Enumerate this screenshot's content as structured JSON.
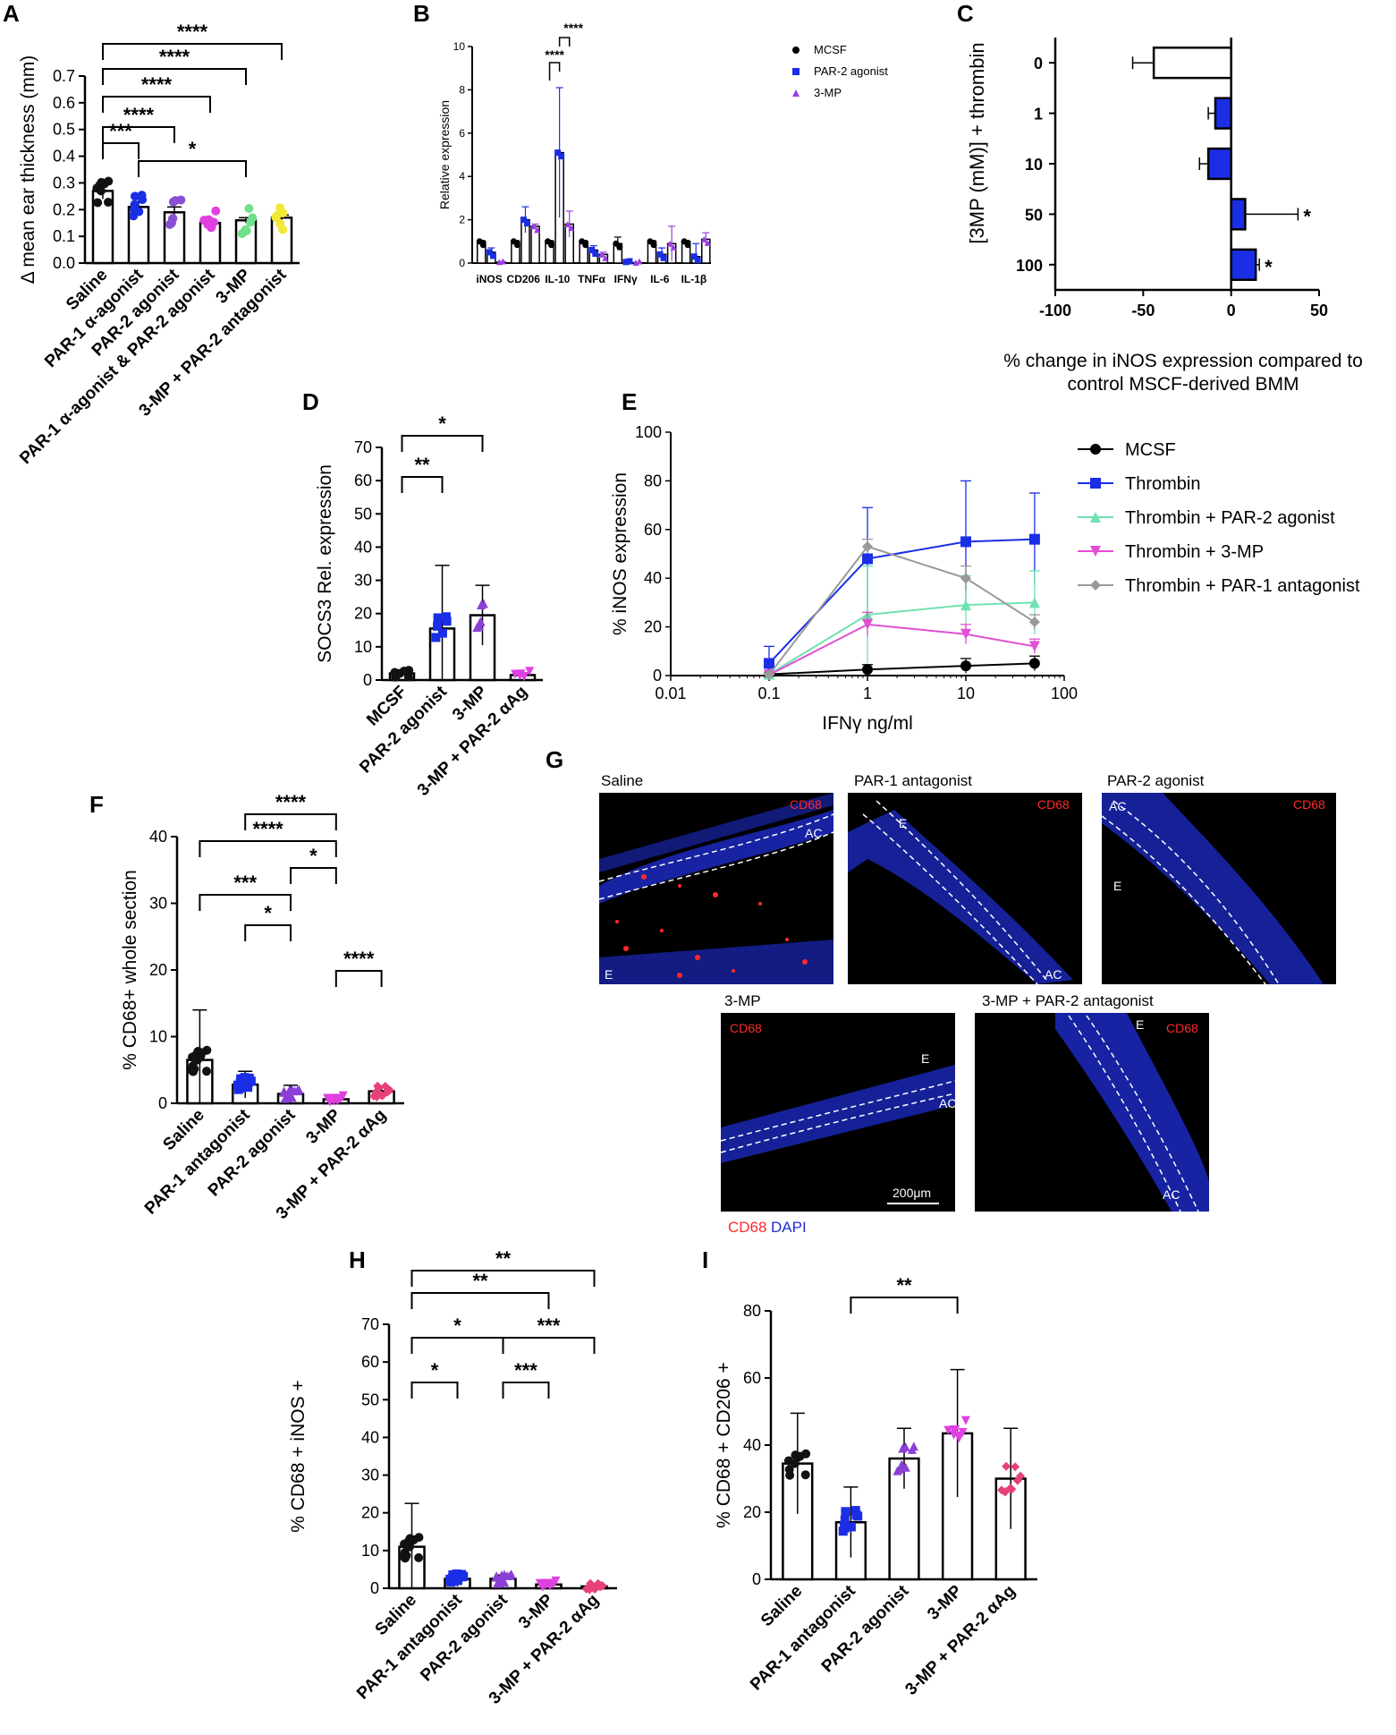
{
  "figure": {
    "A": {
      "letter": "A"
    },
    "B": {
      "letter": "B"
    },
    "C": {
      "letter": "C"
    },
    "D": {
      "letter": "D"
    },
    "E": {
      "letter": "E"
    },
    "F": {
      "letter": "F"
    },
    "G": {
      "letter": "G"
    },
    "H": {
      "letter": "H"
    },
    "I": {
      "letter": "I"
    }
  },
  "chart_data": [
    {
      "panel": "A",
      "type": "bar",
      "ylabel": "Δ mean ear thickness (mm)",
      "ylim": [
        0,
        0.7
      ],
      "yticks": [
        "0.0",
        "0.1",
        "0.2",
        "0.3",
        "0.4",
        "0.5",
        "0.6",
        "0.7"
      ],
      "categories": [
        "Saline",
        "PAR-1 α-agonist",
        "PAR-2 agonist",
        "PAR-1 α-agonist & PAR-2 agonist",
        "3-MP",
        "3-MP + PAR-2 antagonist"
      ],
      "values": [
        0.27,
        0.21,
        0.19,
        0.15,
        0.16,
        0.17
      ],
      "errors": [
        0.03,
        0.02,
        0.02,
        0.01,
        0.01,
        0.01
      ],
      "colors": [
        "#111111",
        "#1a2ee6",
        "#8b4fd6",
        "#e040e0",
        "#6fe08c",
        "#f2e836"
      ],
      "significance": [
        {
          "a": 0,
          "b": 1,
          "label": "***"
        },
        {
          "a": 0,
          "b": 2,
          "label": "****"
        },
        {
          "a": 0,
          "b": 3,
          "label": "****"
        },
        {
          "a": 0,
          "b": 4,
          "label": "****"
        },
        {
          "a": 0,
          "b": 5,
          "label": "****"
        },
        {
          "a": 1,
          "b": 4,
          "label": "*"
        }
      ]
    },
    {
      "panel": "B",
      "type": "bar",
      "ylabel": "Relative expression",
      "ylim": [
        0,
        10
      ],
      "yticks": [
        "0",
        "2",
        "4",
        "6",
        "8",
        "10"
      ],
      "categories": [
        "iNOS",
        "CD206",
        "IL-10",
        "TNFα",
        "IFNγ",
        "IL-6",
        "IL-1β"
      ],
      "series": [
        {
          "name": "MCSF",
          "color": "#000000",
          "marker": "circle",
          "values": [
            1,
            1,
            1,
            1,
            0.9,
            1,
            1
          ],
          "errors": [
            0.05,
            0.05,
            0.05,
            0.05,
            0.3,
            0.05,
            0.05
          ]
        },
        {
          "name": "PAR-2 agonist",
          "color": "#1a2ee6",
          "marker": "square",
          "values": [
            0.5,
            2,
            5.1,
            0.6,
            0.05,
            0.4,
            0.3
          ],
          "errors": [
            0.2,
            0.6,
            3.0,
            0.2,
            0.02,
            0.3,
            0.6
          ]
        },
        {
          "name": "3-MP",
          "color": "#9b3fe0",
          "marker": "triangle",
          "values": [
            0.05,
            1.7,
            1.8,
            0.4,
            0.02,
            0.9,
            1.1
          ],
          "errors": [
            0.02,
            0.1,
            0.6,
            0.1,
            0.01,
            0.8,
            0.3
          ]
        }
      ],
      "significance": [
        {
          "label": "****"
        },
        {
          "label": "****"
        }
      ]
    },
    {
      "panel": "C",
      "type": "bar",
      "orientation": "horizontal",
      "ylabel": "[3MP (mM)] + thrombin",
      "xlabel": "% change in iNOS expression compared to control MSCF-derived BMM",
      "xlim": [
        -100,
        50
      ],
      "xticks": [
        "-100",
        "-50",
        "0",
        "50"
      ],
      "categories": [
        "0",
        "1",
        "10",
        "50",
        "100"
      ],
      "values": [
        -44,
        -9,
        -13,
        8,
        14
      ],
      "errors": [
        12,
        4,
        5,
        30,
        2
      ],
      "colors": [
        "#ffffff",
        "#1a2ee6",
        "#1a2ee6",
        "#1a2ee6",
        "#1a2ee6"
      ],
      "significance": [
        "",
        "",
        "",
        "*",
        "*"
      ]
    },
    {
      "panel": "D",
      "type": "bar",
      "ylabel": "SOCS3 Rel. expression",
      "ylim": [
        0,
        70
      ],
      "yticks": [
        "0",
        "10",
        "20",
        "30",
        "40",
        "50",
        "60",
        "70"
      ],
      "categories": [
        "MCSF",
        "PAR-2 agonist",
        "3-MP",
        "3-MP + PAR-2 αAg"
      ],
      "values": [
        2,
        15.5,
        19.5,
        1.5
      ],
      "errors": [
        0.5,
        19,
        9,
        0.7
      ],
      "colors": [
        "#111111",
        "#1a2ee6",
        "#8b3fd6",
        "#e040e0"
      ],
      "significance": [
        {
          "a": 0,
          "b": 1,
          "label": "**"
        },
        {
          "a": 0,
          "b": 2,
          "label": "*"
        }
      ]
    },
    {
      "panel": "E",
      "type": "line",
      "xscale": "log",
      "xlabel": "IFNγ ng/ml",
      "ylabel": "% iNOS expression",
      "xlim": [
        0.01,
        100
      ],
      "ylim": [
        0,
        100
      ],
      "xticks": [
        "0.01",
        "0.1",
        "1",
        "10",
        "100"
      ],
      "yticks": [
        "0",
        "20",
        "40",
        "60",
        "80",
        "100"
      ],
      "x": [
        0.1,
        1,
        10,
        50
      ],
      "series": [
        {
          "name": "MCSF",
          "color": "#000000",
          "marker": "circle",
          "values": [
            0.5,
            2.5,
            4,
            5
          ],
          "errors": [
            0.5,
            2,
            3,
            3
          ]
        },
        {
          "name": "Thrombin",
          "color": "#1a2ee6",
          "marker": "square",
          "values": [
            5,
            48,
            55,
            56
          ],
          "errors": [
            7,
            21,
            25,
            19
          ]
        },
        {
          "name": "Thrombin + PAR-2 agonist",
          "color": "#6ee3b0",
          "marker": "triangle",
          "values": [
            0.5,
            25,
            29,
            30
          ],
          "errors": [
            0.5,
            20,
            12,
            13
          ]
        },
        {
          "name": "Thrombin + 3-MP",
          "color": "#e14fd2",
          "marker": "triangle-down",
          "values": [
            0.3,
            21,
            17,
            12
          ],
          "errors": [
            0.3,
            5,
            4,
            3
          ]
        },
        {
          "name": "Thrombin + PAR-1 antagonist",
          "color": "#999999",
          "marker": "diamond",
          "values": [
            0.3,
            53,
            40,
            22
          ],
          "errors": [
            0.3,
            3,
            5,
            3
          ]
        }
      ]
    },
    {
      "panel": "F",
      "type": "bar",
      "ylabel": "% CD68+ whole section",
      "ylim": [
        0,
        40
      ],
      "yticks": [
        "0",
        "10",
        "20",
        "30",
        "40"
      ],
      "categories": [
        "Saline",
        "PAR-1 antagonist",
        "PAR-2 agonist",
        "3-MP",
        "3-MP + PAR-2 αAg"
      ],
      "values": [
        6.5,
        2.8,
        1.4,
        0.6,
        1.8
      ],
      "errors": [
        7.5,
        2.0,
        1.3,
        0.2,
        0.8
      ],
      "colors": [
        "#111111",
        "#1a2ee6",
        "#8b3fd6",
        "#e040e0",
        "#e8407a"
      ],
      "significance": [
        {
          "a": 1,
          "b": 2,
          "label": "*"
        },
        {
          "a": 0,
          "b": 2,
          "label": "***"
        },
        {
          "a": 2,
          "b": 3,
          "label": "*"
        },
        {
          "a": 0,
          "b": 3,
          "label": "****"
        },
        {
          "a": 1,
          "b": 3,
          "label": "****"
        },
        {
          "a": 3,
          "b": 4,
          "label": "****"
        }
      ]
    },
    {
      "panel": "H",
      "type": "bar",
      "ylabel": "% CD68 + iNOS +",
      "ylim": [
        0,
        70
      ],
      "yticks": [
        "0",
        "10",
        "20",
        "30",
        "40",
        "50",
        "60",
        "70"
      ],
      "categories": [
        "Saline",
        "PAR-1 antagonist",
        "PAR-2 agonist",
        "3-MP",
        "3-MP + PAR-2 αAg"
      ],
      "values": [
        11,
        2.5,
        2.5,
        1,
        0.5
      ],
      "errors": [
        11.5,
        2,
        1,
        0.3,
        0.3
      ],
      "colors": [
        "#111111",
        "#1a2ee6",
        "#8b3fd6",
        "#e040e0",
        "#e8407a"
      ],
      "significance": [
        {
          "a": 0,
          "b": 1,
          "label": "*"
        },
        {
          "a": 0,
          "b": 2,
          "label": "*"
        },
        {
          "a": 2,
          "b": 3,
          "label": "***"
        },
        {
          "a": 2,
          "b": 4,
          "label": "***"
        },
        {
          "a": 0,
          "b": 3,
          "label": "**"
        },
        {
          "a": 0,
          "b": 4,
          "label": "**"
        }
      ]
    },
    {
      "panel": "I",
      "type": "bar",
      "ylabel": "% CD68 + CD206 +",
      "ylim": [
        0,
        80
      ],
      "yticks": [
        "0",
        "20",
        "40",
        "60",
        "80"
      ],
      "categories": [
        "Saline",
        "PAR-1 antagonist",
        "PAR-2 agonist",
        "3-MP",
        "3-MP + PAR-2 αAg"
      ],
      "values": [
        34.5,
        17,
        36,
        43.5,
        30
      ],
      "errors": [
        15,
        10.5,
        9,
        19,
        15
      ],
      "colors": [
        "#111111",
        "#1a2ee6",
        "#8b3fd6",
        "#e040e0",
        "#e8407a"
      ],
      "significance": [
        {
          "a": 1,
          "b": 3,
          "label": "**"
        }
      ]
    }
  ],
  "micrographs": {
    "panels": [
      {
        "title": "Saline",
        "stain": "CD68",
        "labels": [
          "AC",
          "E"
        ]
      },
      {
        "title": "PAR-1 antagonist",
        "stain": "CD68",
        "labels": [
          "E",
          "AC"
        ]
      },
      {
        "title": "PAR-2 agonist",
        "stain": "CD68",
        "labels": [
          "AC",
          "E"
        ]
      },
      {
        "title": "3-MP",
        "stain": "CD68",
        "labels": [
          "E",
          "AC"
        ],
        "scalebar": "200μm"
      },
      {
        "title": "3-MP + PAR-2 antagonist",
        "stain": "CD68",
        "labels": [
          "E",
          "AC"
        ]
      }
    ],
    "legend_cd68": "CD68",
    "legend_dapi": "DAPI",
    "colors": {
      "tissue": "#1f2fd8",
      "stain": "#ff2a2a",
      "background": "#000000"
    }
  }
}
